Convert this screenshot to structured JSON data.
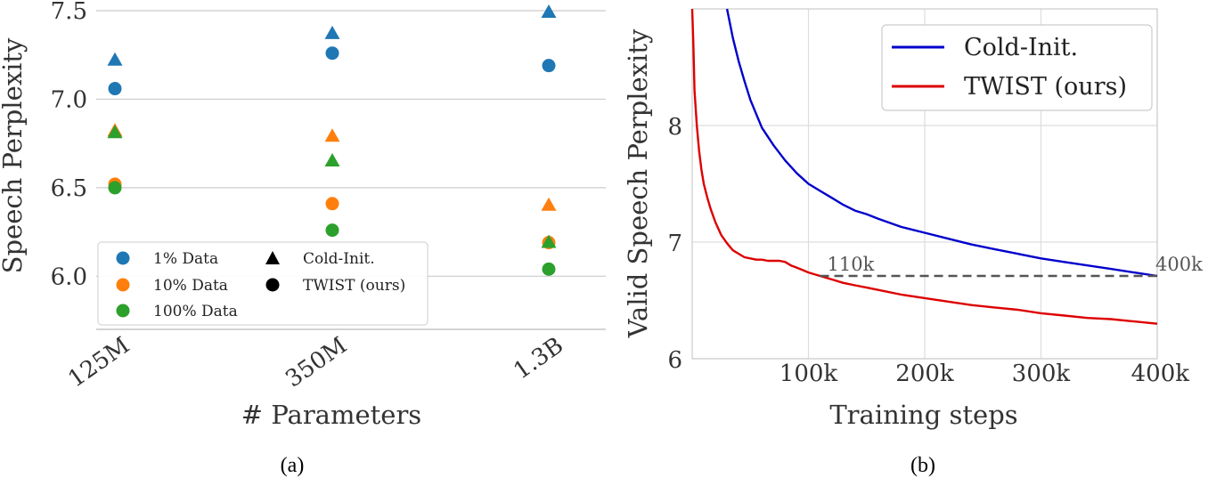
{
  "chart_data": [
    {
      "type": "scatter",
      "caption": "(a)",
      "xlabel": "# Parameters",
      "ylabel": "Speech Perplexity",
      "categories": [
        "125M",
        "350M",
        "1.3B"
      ],
      "ylim": [
        5.7,
        7.5
      ],
      "yticks": [
        6.0,
        6.5,
        7.0,
        7.5
      ],
      "ytick_labels": [
        "6.0",
        "6.5",
        "7.0",
        "7.5"
      ],
      "grid": "horizontal",
      "legend_position": "lower-left",
      "colors": {
        "1% Data": "#1f77b4",
        "10% Data": "#ff7f0e",
        "100% Data": "#2ca02c"
      },
      "legend": {
        "data_entries": [
          "1% Data",
          "10% Data",
          "100% Data"
        ],
        "marker_entries": [
          {
            "label": "Cold-Init.",
            "marker": "triangle"
          },
          {
            "label": "TWIST (ours)",
            "marker": "circle"
          }
        ]
      },
      "series": [
        {
          "data": "1% Data",
          "init": "Cold-Init.",
          "values": [
            7.22,
            7.37,
            7.49
          ]
        },
        {
          "data": "1% Data",
          "init": "TWIST (ours)",
          "values": [
            7.06,
            7.26,
            7.19
          ]
        },
        {
          "data": "10% Data",
          "init": "Cold-Init.",
          "values": [
            6.82,
            6.79,
            6.4
          ]
        },
        {
          "data": "10% Data",
          "init": "TWIST (ours)",
          "values": [
            6.52,
            6.41,
            6.19
          ]
        },
        {
          "data": "100% Data",
          "init": "Cold-Init.",
          "values": [
            6.81,
            6.65,
            6.19
          ]
        },
        {
          "data": "100% Data",
          "init": "TWIST (ours)",
          "values": [
            6.5,
            6.26,
            6.04
          ]
        }
      ]
    },
    {
      "type": "line",
      "caption": "(b)",
      "xlabel": "Training steps",
      "ylabel": "Valid Speech Perplexity",
      "xlim": [
        0,
        400000
      ],
      "ylim": [
        6.0,
        9.0
      ],
      "xticks": [
        100000,
        200000,
        300000,
        400000
      ],
      "xtick_labels": [
        "100k",
        "200k",
        "300k",
        "400k"
      ],
      "yticks": [
        6,
        7,
        8
      ],
      "ytick_labels": [
        "6",
        "7",
        "8"
      ],
      "grid": "both",
      "legend_position": "top-right",
      "series": [
        {
          "name": "Cold-Init.",
          "color": "#0000cc",
          "x": [
            30000,
            35000,
            40000,
            45000,
            50000,
            55000,
            60000,
            70000,
            80000,
            90000,
            100000,
            110000,
            120000,
            130000,
            140000,
            150000,
            160000,
            180000,
            200000,
            220000,
            240000,
            260000,
            280000,
            300000,
            320000,
            340000,
            360000,
            380000,
            400000
          ],
          "y": [
            9.0,
            8.75,
            8.55,
            8.38,
            8.22,
            8.1,
            7.98,
            7.83,
            7.7,
            7.59,
            7.5,
            7.44,
            7.38,
            7.32,
            7.27,
            7.24,
            7.2,
            7.13,
            7.08,
            7.03,
            6.98,
            6.94,
            6.9,
            6.86,
            6.83,
            6.8,
            6.77,
            6.74,
            6.71
          ]
        },
        {
          "name": "TWIST (ours)",
          "color": "#dd0000",
          "x": [
            0,
            1000,
            2000,
            4000,
            6000,
            8000,
            10000,
            13000,
            16000,
            20000,
            25000,
            30000,
            35000,
            40000,
            45000,
            50000,
            55000,
            60000,
            65000,
            70000,
            75000,
            80000,
            85000,
            90000,
            95000,
            100000,
            110000,
            120000,
            130000,
            140000,
            150000,
            160000,
            180000,
            200000,
            220000,
            240000,
            260000,
            280000,
            300000,
            320000,
            340000,
            360000,
            380000,
            400000
          ],
          "y": [
            9.0,
            8.7,
            8.3,
            8.0,
            7.78,
            7.62,
            7.5,
            7.38,
            7.28,
            7.17,
            7.06,
            6.99,
            6.93,
            6.9,
            6.87,
            6.86,
            6.85,
            6.85,
            6.84,
            6.84,
            6.84,
            6.83,
            6.8,
            6.78,
            6.76,
            6.74,
            6.71,
            6.68,
            6.65,
            6.63,
            6.61,
            6.59,
            6.55,
            6.52,
            6.49,
            6.46,
            6.44,
            6.42,
            6.39,
            6.37,
            6.35,
            6.34,
            6.32,
            6.3
          ]
        }
      ],
      "reference_line": {
        "y": 6.71,
        "x": [
          110000,
          400000
        ],
        "color": "#555555",
        "style": "dashed"
      },
      "annotations": [
        {
          "text": "110k",
          "x": 110000,
          "y": 6.71
        },
        {
          "text": "400k",
          "x": 400000,
          "y": 6.71
        }
      ]
    }
  ]
}
